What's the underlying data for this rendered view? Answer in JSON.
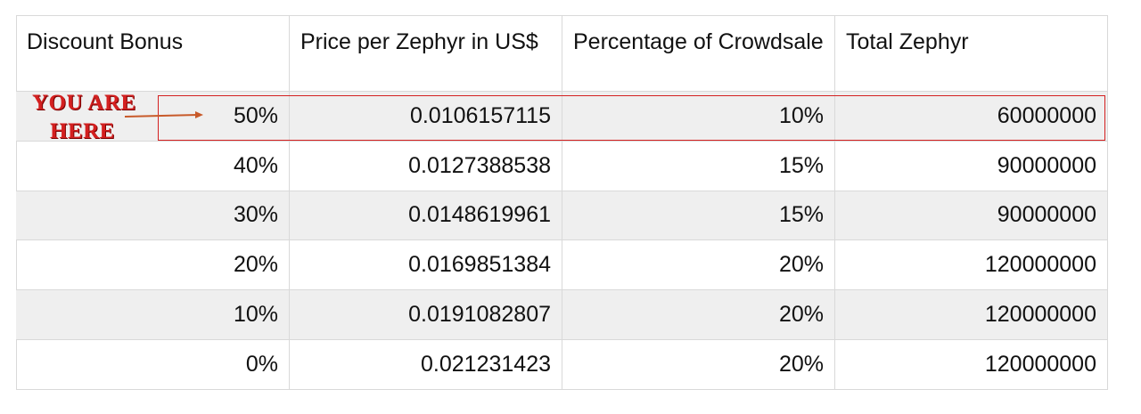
{
  "table": {
    "header": [
      "Discount Bonus",
      "Price per Zephyr in US$",
      "Percentage of Crowdsale",
      "Total Zephyr"
    ],
    "rows": [
      [
        "50%",
        "0.0106157115",
        "10%",
        "60000000"
      ],
      [
        "40%",
        "0.0127388538",
        "15%",
        "90000000"
      ],
      [
        "30%",
        "0.0148619961",
        "15%",
        "90000000"
      ],
      [
        "20%",
        "0.0169851384",
        "20%",
        "120000000"
      ],
      [
        "10%",
        "0.0191082807",
        "20%",
        "120000000"
      ],
      [
        "0%",
        "0.021231423",
        "20%",
        "120000000"
      ]
    ]
  },
  "annotation": {
    "lines": [
      "YOU ARE",
      "HERE"
    ]
  }
}
